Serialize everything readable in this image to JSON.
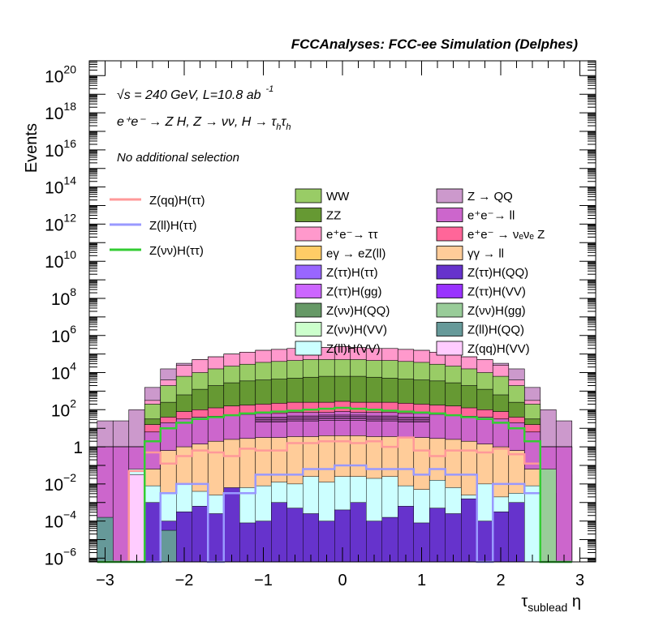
{
  "chart_data": {
    "type": "area",
    "title": "FCCAnalyses: FCC-ee Simulation (Delphes)",
    "ylabel": "Events",
    "xlabel_main": "τ",
    "xlabel_sub": "sublead",
    "xlabel_tail": " η",
    "y_scale": "log",
    "xlim": [
      -3.2,
      3.2
    ],
    "ylim_log10": [
      -6.2,
      20.8
    ],
    "x_ticks": [
      {
        "v": -3,
        "label": "−3"
      },
      {
        "v": -2,
        "label": "−2"
      },
      {
        "v": -1,
        "label": "−1"
      },
      {
        "v": 0,
        "label": "0"
      },
      {
        "v": 1,
        "label": "1"
      },
      {
        "v": 2,
        "label": "2"
      },
      {
        "v": 3,
        "label": "3"
      }
    ],
    "y_ticks": [
      {
        "e": -6,
        "base": "10",
        "exp": "−6"
      },
      {
        "e": -4,
        "base": "10",
        "exp": "−4"
      },
      {
        "e": -2,
        "base": "10",
        "exp": "−2"
      },
      {
        "e": 0,
        "base": "1",
        "exp": ""
      },
      {
        "e": 2,
        "base": "10",
        "exp": "2"
      },
      {
        "e": 4,
        "base": "10",
        "exp": "4"
      },
      {
        "e": 6,
        "base": "10",
        "exp": "6"
      },
      {
        "e": 8,
        "base": "10",
        "exp": "8"
      },
      {
        "e": 10,
        "base": "10",
        "exp": "10"
      },
      {
        "e": 12,
        "base": "10",
        "exp": "12"
      },
      {
        "e": 14,
        "base": "10",
        "exp": "14"
      },
      {
        "e": 16,
        "base": "10",
        "exp": "16"
      },
      {
        "e": 18,
        "base": "10",
        "exp": "18"
      },
      {
        "e": 20,
        "base": "10",
        "exp": "20"
      }
    ],
    "annotations": [
      "√s = 240 GeV, L=10.8 ab",
      "-1",
      "e⁺e⁻ → Z H, Z → νν, H → τ",
      "h",
      "τ",
      "h",
      "No additional selection"
    ],
    "bins": [
      -3.1,
      -2.9,
      -2.7,
      -2.5,
      -2.3,
      -2.1,
      -1.9,
      -1.7,
      -1.5,
      -1.3,
      -1.1,
      -0.9,
      -0.7,
      -0.5,
      -0.3,
      -0.1,
      0.1,
      0.3,
      0.5,
      0.7,
      0.9,
      1.1,
      1.3,
      1.5,
      1.7,
      1.9,
      2.1,
      2.3,
      2.5,
      2.7,
      2.9,
      3.1
    ],
    "stack_envelope": [
      {
        "name": "Z → QQ",
        "color": "#cc99cc",
        "log10": [
          1.4,
          1.4,
          2.0,
          3.2,
          4.2,
          4.5,
          4.7,
          4.85,
          5.0,
          5.1,
          5.2,
          5.25,
          5.3,
          5.3,
          5.35,
          5.4,
          5.35,
          5.3,
          5.3,
          5.25,
          5.2,
          5.1,
          5.0,
          4.85,
          4.7,
          4.5,
          4.2,
          3.2,
          2.0,
          1.4
        ]
      },
      {
        "name": "e⁺e⁻→ ττ",
        "color": "#ff99cc",
        "log10": [
          0.0,
          0.0,
          0.0,
          2.5,
          3.6,
          4.4,
          4.7,
          4.85,
          5.0,
          5.1,
          5.2,
          5.25,
          5.3,
          5.3,
          5.35,
          5.4,
          5.35,
          5.3,
          5.3,
          5.25,
          5.2,
          5.1,
          5.0,
          4.85,
          4.7,
          4.4,
          3.6,
          2.5,
          0.0,
          0.0
        ]
      },
      {
        "name": "WW",
        "color": "#99cc66",
        "log10": [
          0.0,
          0.0,
          0.0,
          2.3,
          3.3,
          3.8,
          4.0,
          4.2,
          4.35,
          4.45,
          4.55,
          4.6,
          4.65,
          4.7,
          4.7,
          4.7,
          4.7,
          4.65,
          4.65,
          4.6,
          4.55,
          4.45,
          4.35,
          4.2,
          4.0,
          3.8,
          3.3,
          2.3,
          0.0,
          0.0
        ]
      },
      {
        "name": "ZZ",
        "color": "#669933",
        "log10": [
          -1.5,
          -1.5,
          -1.0,
          1.5,
          2.4,
          2.8,
          3.1,
          3.3,
          3.45,
          3.55,
          3.6,
          3.65,
          3.7,
          3.75,
          3.8,
          3.8,
          3.8,
          3.75,
          3.7,
          3.65,
          3.6,
          3.55,
          3.45,
          3.3,
          3.1,
          2.8,
          2.4,
          1.5,
          -1.0,
          -1.5
        ]
      },
      {
        "name": "e⁺e⁻ → νₑνₑ Z",
        "color": "#ff6699",
        "log10": [
          0.0,
          0.0,
          0.0,
          1.2,
          1.6,
          1.9,
          2.0,
          2.1,
          2.2,
          2.25,
          2.3,
          2.35,
          2.4,
          2.4,
          2.4,
          2.45,
          2.4,
          2.4,
          2.4,
          2.35,
          2.3,
          2.25,
          2.2,
          2.1,
          2.0,
          1.9,
          1.6,
          1.2,
          0.0,
          0.0
        ]
      },
      {
        "name": "e⁺e⁻ → ll",
        "color": "#cc66cc",
        "log10": [
          0.0,
          0.0,
          0.0,
          0.8,
          1.3,
          1.5,
          1.6,
          1.65,
          1.7,
          1.75,
          1.8,
          1.8,
          1.85,
          1.85,
          1.85,
          1.9,
          1.85,
          1.85,
          1.85,
          1.8,
          1.8,
          1.75,
          1.7,
          1.65,
          1.6,
          1.5,
          1.3,
          0.8,
          0.0,
          0.0
        ]
      },
      {
        "name": "γγ → ll",
        "color": "#ffcc99",
        "log10": [
          -6.3,
          -6.3,
          -2.5,
          -1.2,
          -0.2,
          0.0,
          0.15,
          0.3,
          0.4,
          0.45,
          0.5,
          0.5,
          0.55,
          0.55,
          0.6,
          0.6,
          0.6,
          0.55,
          0.55,
          0.5,
          0.5,
          0.45,
          0.4,
          0.3,
          0.15,
          0.0,
          -0.2,
          -1.2,
          -2.5,
          -6.3
        ]
      }
    ],
    "filled_bars": [
      {
        "name": "Z(ll)H(VV)",
        "color": "#ccffff",
        "log10": [
          -6.3,
          -6.3,
          -1.2,
          -2.1,
          -2.5,
          -2.0,
          -2.4,
          -2.6,
          -2.3,
          -2.2,
          -2.1,
          -1.9,
          -2.0,
          -1.6,
          -1.9,
          -1.6,
          -1.6,
          -1.7,
          -1.6,
          -2.1,
          -2.3,
          -1.8,
          -2.2,
          -2.6,
          -2.0,
          -2.7,
          -2.5,
          -2.1,
          -6.3,
          -6.3
        ]
      },
      {
        "name": "Z(ττ)H(QQ)",
        "color": "#6633cc",
        "log10": [
          -6.3,
          -6.3,
          -6.3,
          -3.0,
          -4.0,
          -3.5,
          -3.2,
          -3.6,
          -2.2,
          -4.1,
          -4.0,
          -3.0,
          -3.3,
          -3.6,
          -4.0,
          -3.4,
          -3.0,
          -4.0,
          -3.8,
          -3.2,
          -4.1,
          -3.3,
          -3.6,
          -2.8,
          -4.0,
          -3.5,
          -3.0,
          -6.3,
          -6.3,
          -6.3
        ]
      },
      {
        "name": "Z(ll)H(QQ)",
        "color": "#669999",
        "log10": [
          -3.8,
          -6.3,
          -6.3,
          -6.3,
          -4.5,
          -6.3,
          -6.3,
          -6.3,
          -6.3,
          -6.3,
          -6.3,
          -6.3,
          -6.3,
          -6.3,
          -6.3,
          -6.3,
          -6.3,
          -6.3,
          -6.3,
          -6.3,
          -6.3,
          -6.3,
          -6.3,
          -6.3,
          -6.3,
          -6.3,
          -6.3,
          -6.3,
          -2.0,
          -6.3
        ]
      },
      {
        "name": "Z(νν)H(gg)",
        "color": "#99cc99",
        "log10": [
          -6.3,
          -6.3,
          -6.3,
          -6.3,
          -6.3,
          -6.3,
          -6.3,
          -6.3,
          -6.3,
          -6.3,
          -6.3,
          -6.3,
          -6.3,
          -6.3,
          -6.3,
          -6.3,
          -6.3,
          -6.3,
          -6.3,
          -6.3,
          -6.3,
          -6.3,
          -6.3,
          -6.3,
          -6.3,
          -6.3,
          -6.3,
          -6.3,
          -1.2,
          -6.3
        ]
      },
      {
        "name": "Z(qq)H(VV)",
        "color": "#ffccff",
        "log10": [
          -6.3,
          -6.3,
          -1.5,
          -6.3,
          -6.3,
          -6.3,
          -6.3,
          -6.3,
          -6.3,
          -6.3,
          -6.3,
          -6.3,
          -6.3,
          -6.3,
          -6.3,
          -6.3,
          -6.3,
          -6.3,
          -6.3,
          -6.3,
          -6.3,
          -6.3,
          -6.3,
          -6.3,
          -6.3,
          -6.3,
          -6.3,
          -6.3,
          -6.3,
          -6.3
        ]
      }
    ],
    "line_series": [
      {
        "name": "Z(qq)H(ττ)",
        "color": "#ff9999",
        "log10": [
          -6.3,
          -6.3,
          -1.3,
          -0.3,
          -0.9,
          -0.5,
          -0.2,
          -0.3,
          -0.5,
          -0.1,
          -0.2,
          -0.2,
          0.2,
          0.2,
          0.3,
          0.3,
          0.2,
          0.3,
          0.0,
          0.5,
          -0.2,
          -0.5,
          -0.2,
          -0.2,
          -0.3,
          -0.1,
          -0.4,
          -0.9,
          -6.3,
          -6.3
        ]
      },
      {
        "name": "Z(ll)H(ττ)",
        "color": "#9999ff",
        "log10": [
          -6.3,
          -6.3,
          -6.3,
          -6.3,
          -2.5,
          -2.0,
          -2.0,
          -6.3,
          -2.5,
          -2.5,
          -1.5,
          -1.5,
          -1.5,
          -1.2,
          -1.2,
          -1.0,
          -1.0,
          -1.2,
          -1.2,
          -1.2,
          -1.5,
          -1.2,
          -1.5,
          -1.5,
          -6.3,
          -2.0,
          -2.0,
          -2.5,
          -6.3,
          -6.3
        ]
      },
      {
        "name": "Z(νν)H(ττ)",
        "color": "#33cc33",
        "log10": [
          -6.3,
          -6.3,
          -6.3,
          0.3,
          1.0,
          1.3,
          1.5,
          1.6,
          1.7,
          1.8,
          1.85,
          1.9,
          1.95,
          2.0,
          2.05,
          2.1,
          2.05,
          2.0,
          1.95,
          1.9,
          1.85,
          1.8,
          1.7,
          1.6,
          1.5,
          1.3,
          1.0,
          0.3,
          -6.3,
          -6.3
        ]
      }
    ],
    "thin_layer_lines": [
      1.6,
      1.4,
      1.2,
      1.0,
      0.8
    ],
    "legend_lines": [
      {
        "name": "Z(qq)H(ττ)",
        "color": "#ff9999"
      },
      {
        "name": "Z(ll)H(ττ)",
        "color": "#9999ff"
      },
      {
        "name": "Z(νν)H(ττ)",
        "color": "#33cc33"
      }
    ],
    "legend_boxes": [
      {
        "name": "WW",
        "color": "#99cc66",
        "name_b": "Z → QQ",
        "color_b": "#cc99cc"
      },
      {
        "name": "ZZ",
        "color": "#669933",
        "name_b": "e⁺e⁻→ ll",
        "color_b": "#cc66cc"
      },
      {
        "name": "e⁺e⁻→ ττ",
        "color": "#ff99cc",
        "name_b": "e⁺e⁻ → νₑνₑ Z",
        "color_b": "#ff6699"
      },
      {
        "name": "eγ → eZ(ll)",
        "color": "#ffcc66",
        "name_b": "γγ → ll",
        "color_b": "#ffcc99"
      },
      {
        "name": "Z(ττ)H(ττ)",
        "color": "#9966ff",
        "name_b": "Z(ττ)H(QQ)",
        "color_b": "#6633cc"
      },
      {
        "name": "Z(ττ)H(gg)",
        "color": "#cc66ff",
        "name_b": "Z(ττ)H(VV)",
        "color_b": "#9933ff"
      },
      {
        "name": "Z(νν)H(QQ)",
        "color": "#669966",
        "name_b": "Z(νν)H(gg)",
        "color_b": "#99cc99"
      },
      {
        "name": "Z(νν)H(VV)",
        "color": "#ccffcc",
        "name_b": "Z(ll)H(QQ)",
        "color_b": "#669999"
      },
      {
        "name": "Z(ll)H(VV)",
        "color": "#ccffff",
        "name_b": "Z(qq)H(VV)",
        "color_b": "#ffccff"
      }
    ]
  }
}
